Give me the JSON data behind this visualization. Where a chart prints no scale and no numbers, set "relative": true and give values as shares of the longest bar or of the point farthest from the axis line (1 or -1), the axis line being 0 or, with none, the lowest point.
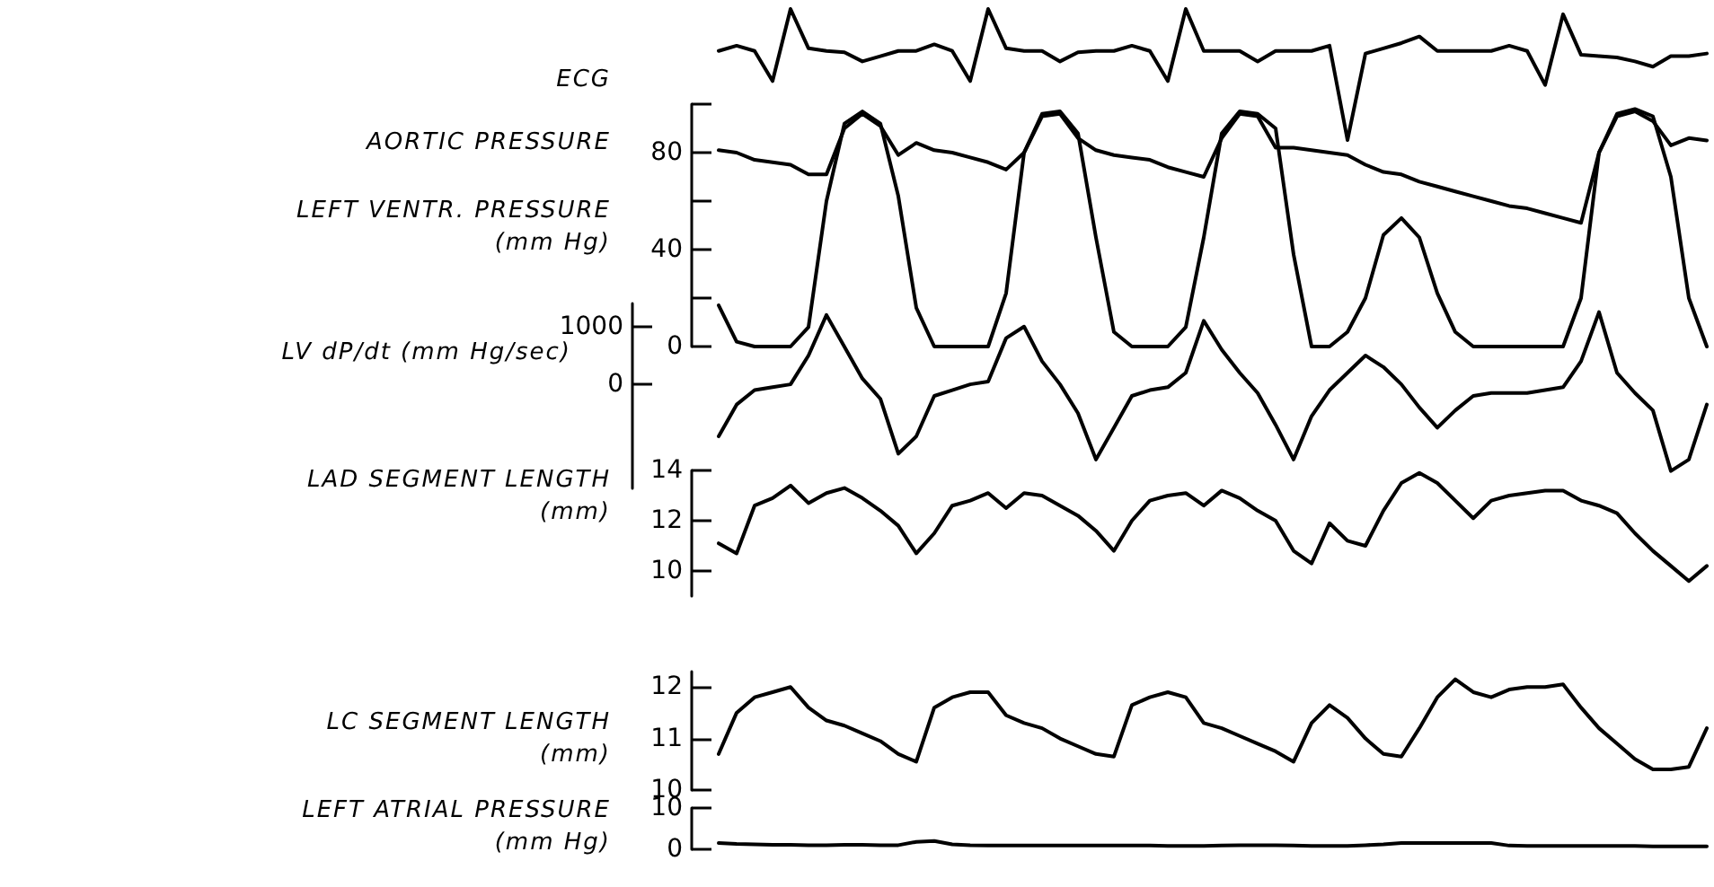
{
  "chart_data": [
    {
      "type": "line",
      "ylabel": "ECG",
      "relative": true,
      "tick_labels": false,
      "marker": "none",
      "line_style": "solid",
      "categories": [
        null,
        null,
        null,
        null,
        null,
        null,
        null,
        null,
        null,
        null,
        null,
        null,
        null,
        null,
        null,
        null,
        null,
        null,
        null,
        null,
        null,
        null,
        null,
        null,
        null,
        null,
        null,
        null,
        null,
        null,
        null,
        null,
        null,
        null,
        null,
        null,
        null,
        null,
        null,
        null,
        null,
        null,
        null,
        null,
        null,
        null,
        null,
        null,
        null,
        null,
        null,
        null,
        null,
        null,
        null,
        null
      ],
      "series": [
        {
          "color": "#000000",
          "values": [
            0.68,
            0.72,
            0.68,
            0.45,
            1.0,
            0.7,
            0.68,
            0.67,
            0.6,
            0.64,
            0.68,
            0.68,
            0.73,
            0.68,
            0.45,
            1.0,
            0.7,
            0.68,
            0.68,
            0.6,
            0.67,
            0.68,
            0.68,
            0.72,
            0.68,
            0.45,
            1.0,
            0.68,
            0.68,
            0.68,
            0.6,
            0.68,
            0.68,
            0.68,
            0.72,
            0.0,
            0.66,
            0.7,
            0.74,
            0.79,
            0.68,
            0.68,
            0.68,
            0.68,
            0.72,
            0.68,
            0.42,
            0.96,
            0.65,
            0.64,
            0.63,
            0.6,
            0.56,
            0.64,
            0.64,
            0.66
          ]
        }
      ]
    },
    {
      "type": "line",
      "ylabel": "(mm Hg)",
      "annotations": [
        "AORTIC PRESSURE",
        "LEFT VENTR. PRESSURE"
      ],
      "tick_labels": "y",
      "marker": "none",
      "line_style": "solid",
      "ylim": [
        0,
        100
      ],
      "yticks": [
        0,
        {
          "value": 20,
          "label": null
        },
        40,
        {
          "value": 60,
          "label": null
        },
        80,
        {
          "value": 100,
          "label": null
        }
      ],
      "categories": [
        null,
        null,
        null,
        null,
        null,
        null,
        null,
        null,
        null,
        null,
        null,
        null,
        null,
        null,
        null,
        null,
        null,
        null,
        null,
        null,
        null,
        null,
        null,
        null,
        null,
        null,
        null,
        null,
        null,
        null,
        null,
        null,
        null,
        null,
        null,
        null,
        null,
        null,
        null,
        null,
        null,
        null,
        null,
        null,
        null,
        null,
        null,
        null,
        null,
        null,
        null,
        null,
        null,
        null,
        null,
        null
      ],
      "series": [
        {
          "color": "#000000",
          "values": [
            81,
            80,
            77,
            76,
            75,
            71,
            71,
            90,
            96,
            91,
            79,
            84,
            81,
            80,
            78,
            76,
            73,
            80,
            95,
            96,
            86,
            81,
            79,
            78,
            77,
            74,
            72,
            70,
            86,
            96,
            95,
            82,
            82,
            81,
            80,
            79,
            75,
            72,
            71,
            68,
            66,
            64,
            62,
            60,
            58,
            57,
            55,
            53,
            51,
            80,
            95,
            97,
            93,
            83,
            86,
            85
          ]
        },
        {
          "color": "#000000",
          "values": [
            17,
            2,
            0,
            0,
            0,
            8,
            60,
            92,
            97,
            92,
            62,
            16,
            0,
            0,
            0,
            0,
            22,
            80,
            96,
            97,
            88,
            45,
            6,
            0,
            0,
            0,
            8,
            45,
            88,
            97,
            96,
            90,
            38,
            0,
            0,
            6,
            20,
            46,
            53,
            45,
            22,
            6,
            0,
            0,
            0,
            0,
            0,
            0,
            20,
            80,
            96,
            98,
            95,
            70,
            20,
            0
          ]
        }
      ]
    },
    {
      "type": "line",
      "ylabel": "LV dP/dt (mm Hg/sec)",
      "tick_labels": "y",
      "marker": "none",
      "line_style": "solid",
      "ylim": [
        -1800,
        1400
      ],
      "yticks": [
        0,
        1000
      ],
      "categories": [
        null,
        null,
        null,
        null,
        null,
        null,
        null,
        null,
        null,
        null,
        null,
        null,
        null,
        null,
        null,
        null,
        null,
        null,
        null,
        null,
        null,
        null,
        null,
        null,
        null,
        null,
        null,
        null,
        null,
        null,
        null,
        null,
        null,
        null,
        null,
        null,
        null,
        null,
        null,
        null,
        null,
        null,
        null,
        null,
        null,
        null,
        null,
        null,
        null,
        null,
        null,
        null,
        null,
        null,
        null,
        null
      ],
      "series": [
        {
          "color": "#000000",
          "values": [
            -900,
            -350,
            -100,
            -50,
            0,
            500,
            1200,
            650,
            100,
            -250,
            -1200,
            -900,
            -200,
            -100,
            0,
            50,
            800,
            1000,
            400,
            0,
            -500,
            -1300,
            -750,
            -200,
            -100,
            -50,
            200,
            1100,
            600,
            200,
            -150,
            -700,
            -1300,
            -550,
            -100,
            200,
            500,
            300,
            0,
            -400,
            -750,
            -450,
            -200,
            -150,
            -150,
            -150,
            -100,
            -50,
            400,
            1250,
            200,
            -150,
            -450,
            -1500,
            -1300,
            -350
          ]
        }
      ]
    },
    {
      "type": "line",
      "ylabel": "LAD SEGMENT LENGTH (mm)",
      "tick_labels": "y",
      "marker": "none",
      "line_style": "solid",
      "ylim": [
        9,
        14
      ],
      "yticks": [
        10,
        12,
        14
      ],
      "categories": [
        null,
        null,
        null,
        null,
        null,
        null,
        null,
        null,
        null,
        null,
        null,
        null,
        null,
        null,
        null,
        null,
        null,
        null,
        null,
        null,
        null,
        null,
        null,
        null,
        null,
        null,
        null,
        null,
        null,
        null,
        null,
        null,
        null,
        null,
        null,
        null,
        null,
        null,
        null,
        null,
        null,
        null,
        null,
        null,
        null,
        null,
        null,
        null,
        null,
        null,
        null,
        null,
        null,
        null,
        null,
        null
      ],
      "series": [
        {
          "color": "#000000",
          "values": [
            11.1,
            10.7,
            12.6,
            12.9,
            13.4,
            12.7,
            13.1,
            13.3,
            12.9,
            12.4,
            11.8,
            10.7,
            11.5,
            12.6,
            12.8,
            13.1,
            12.5,
            13.1,
            13.0,
            12.6,
            12.2,
            11.6,
            10.8,
            12.0,
            12.8,
            13.0,
            13.1,
            12.6,
            13.2,
            12.9,
            12.4,
            12.0,
            10.8,
            10.3,
            11.9,
            11.2,
            11.0,
            12.4,
            13.5,
            13.9,
            13.5,
            12.8,
            12.1,
            12.8,
            13.0,
            13.1,
            13.2,
            13.2,
            12.8,
            12.6,
            12.3,
            11.5,
            10.8,
            10.2,
            9.6,
            10.2
          ]
        }
      ]
    },
    {
      "type": "line",
      "ylabel": "LC SEGMENT LENGTH (mm)",
      "tick_labels": "y",
      "marker": "none",
      "line_style": "solid",
      "ylim": [
        10,
        12.3
      ],
      "yticks": [
        10,
        11,
        12
      ],
      "categories": [
        null,
        null,
        null,
        null,
        null,
        null,
        null,
        null,
        null,
        null,
        null,
        null,
        null,
        null,
        null,
        null,
        null,
        null,
        null,
        null,
        null,
        null,
        null,
        null,
        null,
        null,
        null,
        null,
        null,
        null,
        null,
        null,
        null,
        null,
        null,
        null,
        null,
        null,
        null,
        null,
        null,
        null,
        null,
        null,
        null,
        null,
        null,
        null,
        null,
        null,
        null,
        null,
        null,
        null,
        null,
        null
      ],
      "series": [
        {
          "color": "#000000",
          "values": [
            10.7,
            11.5,
            11.8,
            11.9,
            12.0,
            11.6,
            11.35,
            11.25,
            11.1,
            10.95,
            10.7,
            10.55,
            11.6,
            11.8,
            11.9,
            11.9,
            11.45,
            11.3,
            11.2,
            11.0,
            10.85,
            10.7,
            10.65,
            11.65,
            11.8,
            11.9,
            11.8,
            11.3,
            11.2,
            11.05,
            10.9,
            10.75,
            10.55,
            11.3,
            11.65,
            11.4,
            11.0,
            10.7,
            10.65,
            11.2,
            11.8,
            12.15,
            11.9,
            11.8,
            11.95,
            12.0,
            12.0,
            12.05,
            11.6,
            11.2,
            10.9,
            10.6,
            10.4,
            10.4,
            10.45,
            11.2
          ]
        }
      ]
    },
    {
      "type": "line",
      "ylabel": "LEFT ATRIAL PRESSURE (mm Hg)",
      "tick_labels": "y",
      "marker": "none",
      "line_style": "solid",
      "ylim": [
        0,
        10
      ],
      "yticks": [
        0,
        10
      ],
      "categories": [
        null,
        null,
        null,
        null,
        null,
        null,
        null,
        null,
        null,
        null,
        null,
        null,
        null,
        null,
        null,
        null,
        null,
        null,
        null,
        null,
        null,
        null,
        null,
        null,
        null,
        null,
        null,
        null,
        null,
        null,
        null,
        null,
        null,
        null,
        null,
        null,
        null,
        null,
        null,
        null,
        null,
        null,
        null,
        null,
        null,
        null,
        null,
        null,
        null,
        null,
        null,
        null,
        null,
        null,
        null,
        null
      ],
      "series": [
        {
          "color": "#000000",
          "values": [
            1.5,
            1.3,
            1.2,
            1.1,
            1.1,
            1.0,
            1.0,
            1.1,
            1.1,
            1.0,
            1.0,
            1.8,
            2.0,
            1.2,
            1.0,
            0.9,
            0.9,
            0.9,
            0.9,
            0.9,
            0.9,
            0.9,
            0.9,
            0.9,
            0.9,
            0.8,
            0.8,
            0.8,
            0.9,
            1.0,
            1.0,
            1.0,
            0.9,
            0.8,
            0.8,
            0.8,
            1.0,
            1.2,
            1.5,
            1.5,
            1.5,
            1.5,
            1.5,
            1.5,
            0.9,
            0.8,
            0.8,
            0.8,
            0.8,
            0.8,
            0.8,
            0.8,
            0.7,
            0.7,
            0.7,
            0.7
          ]
        }
      ]
    }
  ]
}
